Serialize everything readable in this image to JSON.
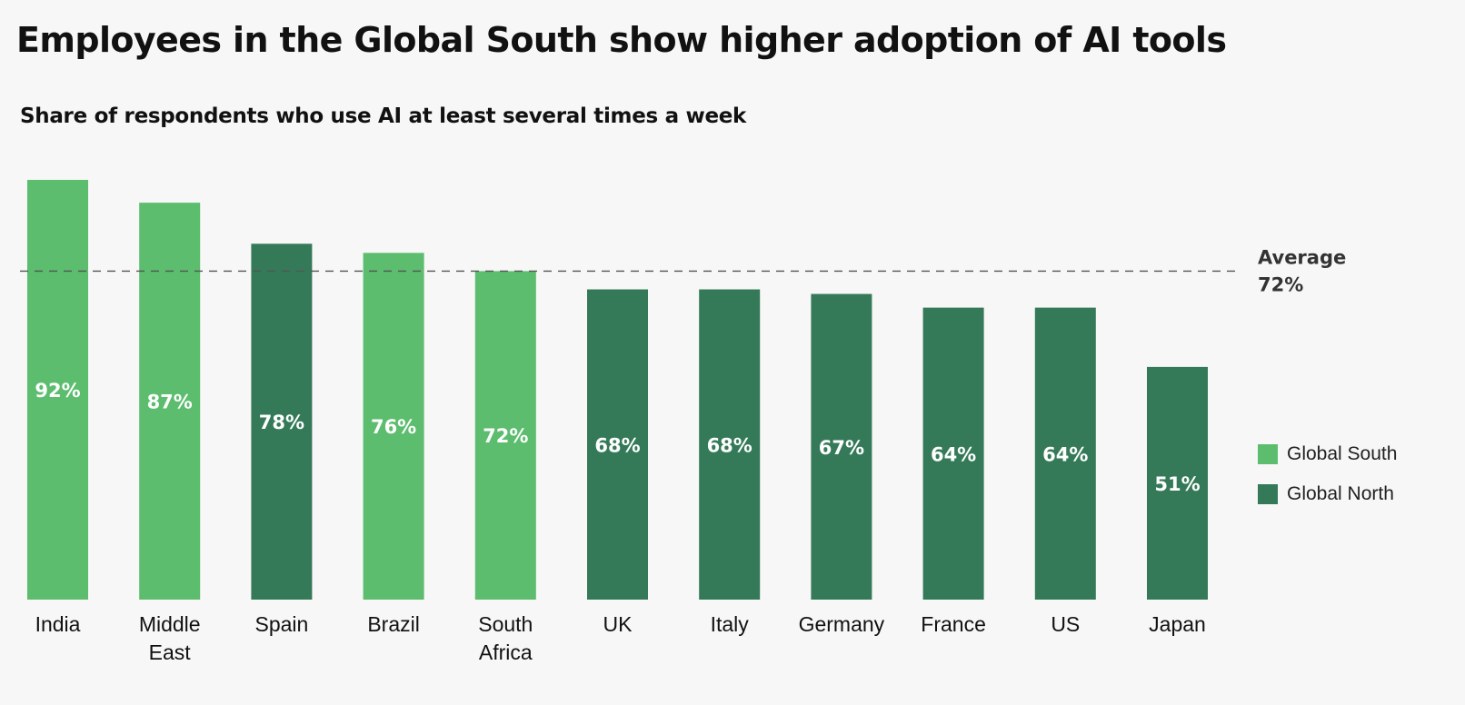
{
  "header": {
    "title": "Employees in the Global South show higher adoption of AI tools",
    "subtitle": "Share of respondents who use AI at least several times a week"
  },
  "colors": {
    "global_south": "#5bbd6d",
    "global_north": "#357a58",
    "average_line": "#555555"
  },
  "legend": [
    {
      "label": "Global South",
      "color_key": "global_south"
    },
    {
      "label": "Global North",
      "color_key": "global_north"
    }
  ],
  "average": {
    "label": "Average",
    "value": 72,
    "value_label": "72%"
  },
  "chart_data": {
    "type": "bar",
    "title": "Employees in the Global South show higher adoption of AI tools",
    "subtitle": "Share of respondents who use AI at least several times a week",
    "xlabel": "",
    "ylabel": "",
    "ylim": [
      0,
      100
    ],
    "grid": false,
    "legend_position": "right",
    "categories": [
      [
        "India"
      ],
      [
        "Middle",
        "East"
      ],
      [
        "Spain"
      ],
      [
        "Brazil"
      ],
      [
        "South",
        "Africa"
      ],
      [
        "UK"
      ],
      [
        "Italy"
      ],
      [
        "Germany"
      ],
      [
        "France"
      ],
      [
        "US"
      ],
      [
        "Japan"
      ]
    ],
    "values": [
      92,
      87,
      78,
      76,
      72,
      68,
      68,
      67,
      64,
      64,
      51
    ],
    "value_labels": [
      "92%",
      "87%",
      "78%",
      "76%",
      "72%",
      "68%",
      "68%",
      "67%",
      "64%",
      "64%",
      "51%"
    ],
    "groups": [
      "Global South",
      "Global South",
      "Global North",
      "Global South",
      "Global South",
      "Global North",
      "Global North",
      "Global North",
      "Global North",
      "Global North",
      "Global North"
    ],
    "reference_line": {
      "label": "Average",
      "value": 72
    }
  }
}
